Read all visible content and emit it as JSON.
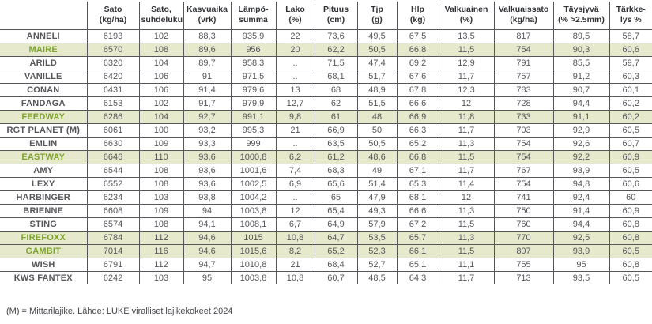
{
  "table": {
    "columns": [
      "",
      "Sato\n(kg/ha)",
      "Sato,\nsuhdeluku",
      "Kasvuaika\n(vrk)",
      "Lämpö-\nsumma",
      "Lako\n(%)",
      "Pituus\n(cm)",
      "Tjp\n(g)",
      "Hlp\n(kg)",
      "Valkuainen\n(%)",
      "Valkuaissato\n(kg/ha)",
      "Täysjyvä\n(% >2.5mm)",
      "Tärkke-\nlys %"
    ],
    "highlight_color": "#e6e9cb",
    "highlight_text_color": "#7da32f",
    "rows": [
      {
        "name": "ANNELI",
        "highlighted": false,
        "values": [
          "6193",
          "102",
          "88,3",
          "935,9",
          "22",
          "73,6",
          "49,5",
          "67,5",
          "13,5",
          "817",
          "89,5",
          "58,7"
        ]
      },
      {
        "name": "MAIRE",
        "highlighted": true,
        "values": [
          "6570",
          "108",
          "89,6",
          "956",
          "20",
          "62,2",
          "50,5",
          "66,8",
          "11,5",
          "754",
          "90,3",
          "60,6"
        ]
      },
      {
        "name": "ARILD",
        "highlighted": false,
        "values": [
          "6320",
          "104",
          "89,7",
          "958,3",
          "..",
          "71,5",
          "47,4",
          "69,2",
          "12,9",
          "791",
          "85,5",
          "59,7"
        ]
      },
      {
        "name": "VANILLE",
        "highlighted": false,
        "values": [
          "6420",
          "106",
          "91",
          "971,5",
          "..",
          "68,1",
          "51,7",
          "67,6",
          "11,7",
          "757",
          "91,2",
          "60,3"
        ]
      },
      {
        "name": "CONAN",
        "highlighted": false,
        "values": [
          "6431",
          "106",
          "91,4",
          "979,6",
          "13",
          "68",
          "48,9",
          "67,8",
          "12,3",
          "783",
          "90,7",
          "60,1"
        ]
      },
      {
        "name": "FANDAGA",
        "highlighted": false,
        "values": [
          "6153",
          "102",
          "91,7",
          "979,9",
          "12,7",
          "62",
          "51,5",
          "66,6",
          "12",
          "728",
          "94,4",
          "60,2"
        ]
      },
      {
        "name": "FEEDWAY",
        "highlighted": true,
        "values": [
          "6286",
          "104",
          "92,7",
          "991,1",
          "9,8",
          "61",
          "48",
          "66,9",
          "11,8",
          "733",
          "91,1",
          "60,2"
        ]
      },
      {
        "name": "RGT PLANET (M)",
        "highlighted": false,
        "values": [
          "6061",
          "100",
          "93,2",
          "995,3",
          "21",
          "66,9",
          "50",
          "66,3",
          "11,7",
          "703",
          "92,9",
          "60,5"
        ]
      },
      {
        "name": "EMLIN",
        "highlighted": false,
        "values": [
          "6630",
          "109",
          "93,3",
          "999",
          "..",
          "63,5",
          "50,5",
          "65,2",
          "11,3",
          "754",
          "92,6",
          "60,7"
        ]
      },
      {
        "name": "EASTWAY",
        "highlighted": true,
        "values": [
          "6646",
          "110",
          "93,6",
          "1000,8",
          "6,2",
          "61,2",
          "48,6",
          "66,8",
          "11,5",
          "754",
          "92,2",
          "60,9"
        ]
      },
      {
        "name": "AMY",
        "highlighted": false,
        "values": [
          "6544",
          "108",
          "93,6",
          "1001,6",
          "7,4",
          "68,3",
          "49",
          "67,1",
          "11,7",
          "767",
          "93,9",
          "60,5"
        ]
      },
      {
        "name": "LEXY",
        "highlighted": false,
        "values": [
          "6552",
          "108",
          "93,6",
          "1002,5",
          "6,9",
          "65,6",
          "51,4",
          "65,3",
          "11,4",
          "754",
          "94,8",
          "60,6"
        ]
      },
      {
        "name": "HARBINGER",
        "highlighted": false,
        "values": [
          "6234",
          "103",
          "93,8",
          "1004,2",
          "..",
          "65",
          "47,9",
          "68,1",
          "12",
          "741",
          "92,4",
          "60"
        ]
      },
      {
        "name": "BRIENNE",
        "highlighted": false,
        "values": [
          "6608",
          "109",
          "94",
          "1003,8",
          "12",
          "65,4",
          "49,3",
          "66,6",
          "11,3",
          "750",
          "91,4",
          "60,9"
        ]
      },
      {
        "name": "STING",
        "highlighted": false,
        "values": [
          "6574",
          "108",
          "94,1",
          "1008,1",
          "6,7",
          "64,9",
          "57,9",
          "67,2",
          "11,5",
          "760",
          "94,4",
          "60,8"
        ]
      },
      {
        "name": "FIREFOXX",
        "highlighted": true,
        "values": [
          "6784",
          "112",
          "94,6",
          "1015",
          "10,8",
          "64,7",
          "53,5",
          "65,7",
          "11,3",
          "770",
          "92,5",
          "60,8"
        ]
      },
      {
        "name": "GAMBIT",
        "highlighted": true,
        "values": [
          "7014",
          "116",
          "94,6",
          "1015,6",
          "8,2",
          "65,2",
          "52,3",
          "66,1",
          "11,5",
          "807",
          "93,9",
          "60,5"
        ]
      },
      {
        "name": "WISH",
        "highlighted": false,
        "values": [
          "6791",
          "112",
          "94,7",
          "1010,8",
          "21",
          "68,4",
          "52,7",
          "65,1",
          "11,1",
          "755",
          "95",
          "60,8"
        ]
      },
      {
        "name": "KWS FANTEX",
        "highlighted": false,
        "values": [
          "6242",
          "103",
          "95",
          "1003,8",
          "10,8",
          "60,7",
          "48,5",
          "64,3",
          "11,7",
          "713",
          "93,5",
          "60,5"
        ]
      }
    ]
  },
  "footnote": "(M) = Mittarilajike.  Lähde: LUKE viralliset lajikekokeet 2024"
}
